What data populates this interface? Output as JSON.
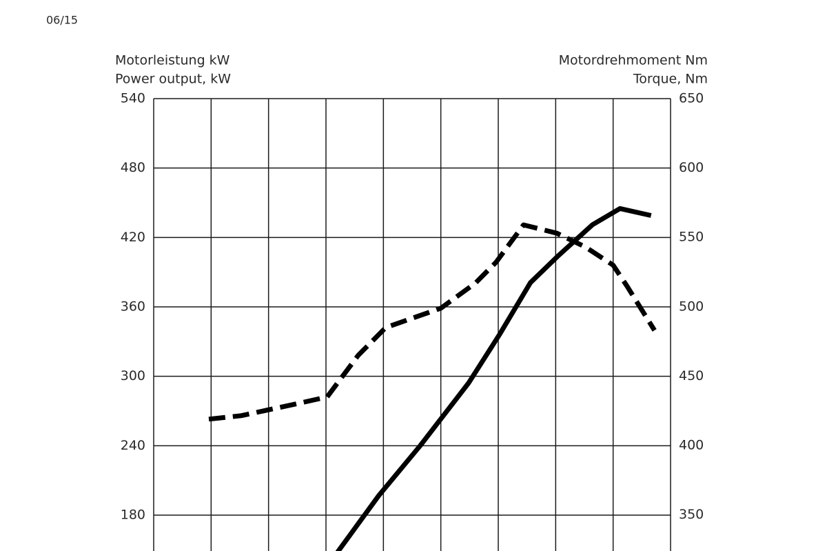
{
  "date_note": "06/15",
  "chart_data": {
    "type": "line",
    "y_label_de": "Motorleistung kW",
    "y_label": "Power output, kW",
    "y2_label_de": "Motordrehmoment Nm",
    "y2_label": "Torque, Nm",
    "xlim": [
      0,
      9
    ],
    "xticks": [
      0,
      1,
      2,
      3,
      4,
      5,
      6,
      7,
      8,
      9
    ],
    "ylim": [
      149,
      540
    ],
    "yticks": [
      180,
      240,
      300,
      360,
      420,
      480,
      540
    ],
    "y2lim": [
      324,
      650
    ],
    "y2ticks": [
      350,
      400,
      450,
      500,
      550,
      600,
      650
    ],
    "grid": true,
    "series": [
      {
        "color": "#000000",
        "style": "dashed",
        "axis": "y2",
        "x": [
          0.96,
          1.52,
          2.48,
          3.02,
          3.56,
          4.04,
          5.0,
          5.6,
          5.96,
          6.44,
          7.02,
          7.52,
          8.0,
          8.24,
          8.72
        ],
        "values": [
          419,
          421.5,
          430,
          435,
          465,
          485,
          499,
          517,
          532,
          559,
          553,
          543,
          530,
          515,
          483
        ]
      },
      {
        "color": "#000000",
        "style": "solid",
        "axis": "y",
        "x": [
          3.2,
          3.92,
          4.64,
          5.48,
          6.02,
          6.56,
          7.04,
          7.64,
          8.12,
          8.66
        ],
        "values": [
          148,
          197,
          240,
          294,
          336,
          381,
          404,
          431,
          445,
          439
        ]
      }
    ]
  }
}
